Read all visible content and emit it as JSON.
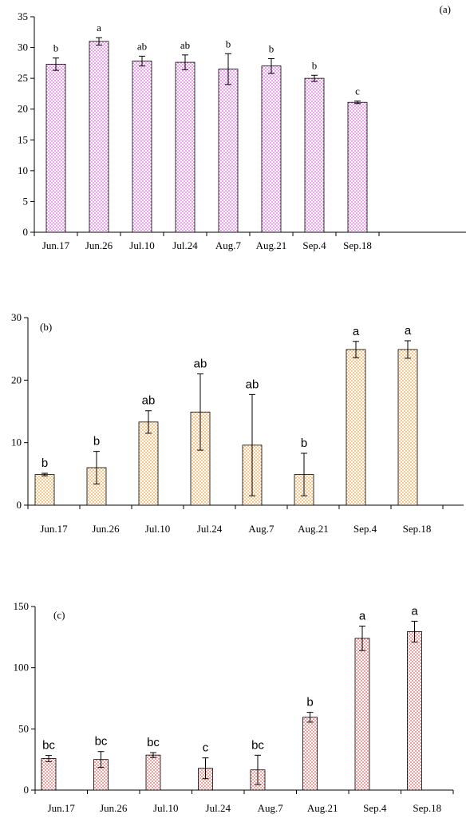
{
  "chart_data": [
    {
      "type": "bar",
      "panel_label": "(a)",
      "categories": [
        "Jun.17",
        "Jun.26",
        "Jul.10",
        "Jul.24",
        "Aug.7",
        "Aug.21",
        "Sep.4",
        "Sep.18"
      ],
      "values": [
        27.3,
        31.0,
        27.8,
        27.6,
        26.5,
        27.0,
        25.0,
        21.1
      ],
      "errors": [
        1.0,
        0.6,
        0.8,
        1.2,
        2.5,
        1.2,
        0.5,
        0.2
      ],
      "significance_letters": [
        "b",
        "a",
        "ab",
        "ab",
        "b",
        "b",
        "b",
        "c"
      ],
      "ylim": [
        0,
        35
      ],
      "yticks": [
        0,
        5,
        10,
        15,
        20,
        25,
        30,
        35
      ],
      "bar_color": "#e060e0",
      "pattern": "dotted"
    },
    {
      "type": "bar",
      "panel_label": "(b)",
      "categories": [
        "Jun.17",
        "Jun.26",
        "Jul.10",
        "Jul.24",
        "Aug.7",
        "Aug.21",
        "Sep.4",
        "Sep.18"
      ],
      "values": [
        4.9,
        6.0,
        13.3,
        14.9,
        9.6,
        4.9,
        24.9,
        24.9
      ],
      "errors": [
        0.2,
        2.6,
        1.8,
        6.1,
        8.1,
        3.4,
        1.3,
        1.4
      ],
      "significance_letters": [
        "b",
        "b",
        "ab",
        "ab",
        "ab",
        "b",
        "a",
        "a"
      ],
      "ylim": [
        0,
        30
      ],
      "yticks": [
        0,
        10,
        20,
        30
      ],
      "bar_color": "#f0a040",
      "pattern": "dotted"
    },
    {
      "type": "bar",
      "panel_label": "(c)",
      "categories": [
        "Jun.17",
        "Jun.26",
        "Jul.10",
        "Jul.24",
        "Aug.7",
        "Aug.21",
        "Sep.4",
        "Sep.18"
      ],
      "values": [
        25.8,
        25.0,
        28.6,
        17.8,
        16.5,
        59.5,
        124.0,
        129.5
      ],
      "errors": [
        2.5,
        6.5,
        2.0,
        8.5,
        12.0,
        4.0,
        10.0,
        8.5
      ],
      "significance_letters": [
        "bc",
        "bc",
        "bc",
        "c",
        "bc",
        "b",
        "a",
        "a"
      ],
      "ylim": [
        0,
        150
      ],
      "yticks": [
        0,
        50,
        100,
        150
      ],
      "bar_color": "#e06060",
      "pattern": "dotted"
    }
  ]
}
